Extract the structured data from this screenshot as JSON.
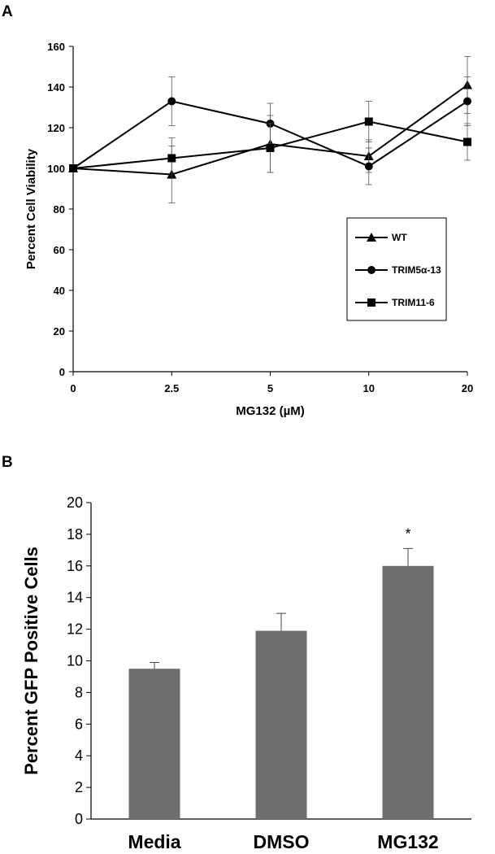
{
  "panels": {
    "a_label": "A",
    "b_label": "B"
  },
  "chart_data": [
    {
      "type": "line",
      "title": "",
      "xlabel": "MG132 (µM)",
      "ylabel": "Percent Cell Viability",
      "categories": [
        "0",
        "2.5",
        "5",
        "10",
        "20"
      ],
      "ylim": [
        0,
        160
      ],
      "yticks": [
        0,
        20,
        40,
        60,
        80,
        100,
        120,
        140,
        160
      ],
      "grid": false,
      "legend": "right, inside plot",
      "series": [
        {
          "name": "WT",
          "marker": "triangle",
          "values": [
            100,
            97,
            112,
            106,
            141
          ],
          "errors": [
            0,
            14,
            14,
            8,
            14
          ]
        },
        {
          "name": "TRIM5α-13",
          "marker": "circle",
          "values": [
            100,
            133,
            122,
            101,
            133
          ],
          "errors": [
            0,
            12,
            10,
            9,
            12
          ]
        },
        {
          "name": "TRIM11-6",
          "marker": "square",
          "values": [
            100,
            105,
            110,
            123,
            113
          ],
          "errors": [
            0,
            10,
            12,
            10,
            9
          ]
        }
      ]
    },
    {
      "type": "bar",
      "title": "",
      "xlabel": "",
      "ylabel": "Percent GFP Positive Cells",
      "categories": [
        "Media",
        "DMSO",
        "MG132"
      ],
      "values": [
        9.5,
        11.9,
        16.0
      ],
      "errors": [
        0.4,
        1.1,
        1.1
      ],
      "annotations": [
        "",
        "",
        "*"
      ],
      "ylim": [
        0,
        20
      ],
      "yticks": [
        0,
        2,
        4,
        6,
        8,
        10,
        12,
        14,
        16,
        18,
        20
      ],
      "grid": false,
      "bar_color": "#6e6e6e"
    }
  ]
}
